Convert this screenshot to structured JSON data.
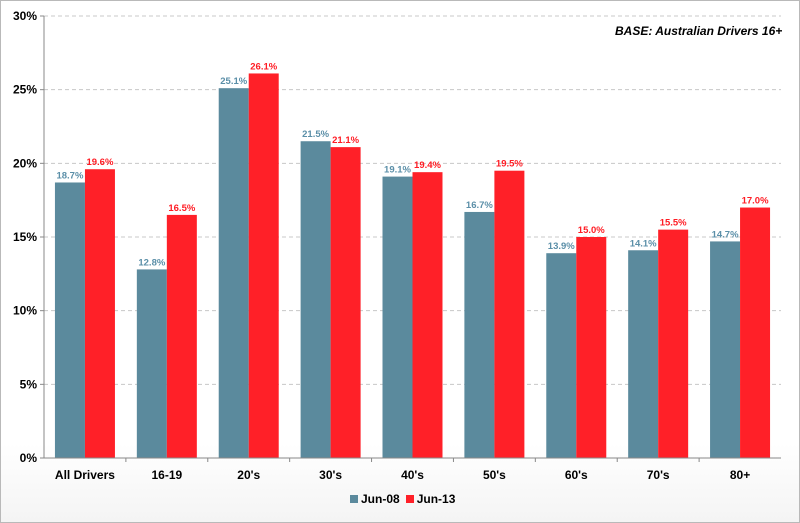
{
  "chart_data": {
    "type": "bar",
    "title": "",
    "annotation": "BASE: Australian Drivers 16+",
    "xlabel": "",
    "ylabel": "",
    "categories": [
      "All Drivers",
      "16-19",
      "20's",
      "30's",
      "40's",
      "50's",
      "60's",
      "70's",
      "80+"
    ],
    "series": [
      {
        "name": "Jun-08",
        "color": "#5b8a9d",
        "label_color": "#5b8fa8",
        "values": [
          18.7,
          12.8,
          25.1,
          21.5,
          19.1,
          16.7,
          13.9,
          14.1,
          14.7
        ],
        "labels": [
          "18.7%",
          "12.8%",
          "25.1%",
          "21.5%",
          "19.1%",
          "16.7%",
          "13.9%",
          "14.1%",
          "14.7%"
        ]
      },
      {
        "name": "Jun-13",
        "color": "#ff2028",
        "label_color": "#ff1c24",
        "values": [
          19.6,
          16.5,
          26.1,
          21.1,
          19.4,
          19.5,
          15.0,
          15.5,
          17.0
        ],
        "labels": [
          "19.6%",
          "16.5%",
          "26.1%",
          "21.1%",
          "19.4%",
          "19.5%",
          "15.0%",
          "15.5%",
          "17.0%"
        ]
      }
    ],
    "ylim": [
      0,
      30
    ],
    "yticks": [
      0,
      5,
      10,
      15,
      20,
      25,
      30
    ],
    "ytick_labels": [
      "0%",
      "5%",
      "10%",
      "15%",
      "20%",
      "25%",
      "30%"
    ],
    "grid": true,
    "legend_position": "bottom-center"
  }
}
